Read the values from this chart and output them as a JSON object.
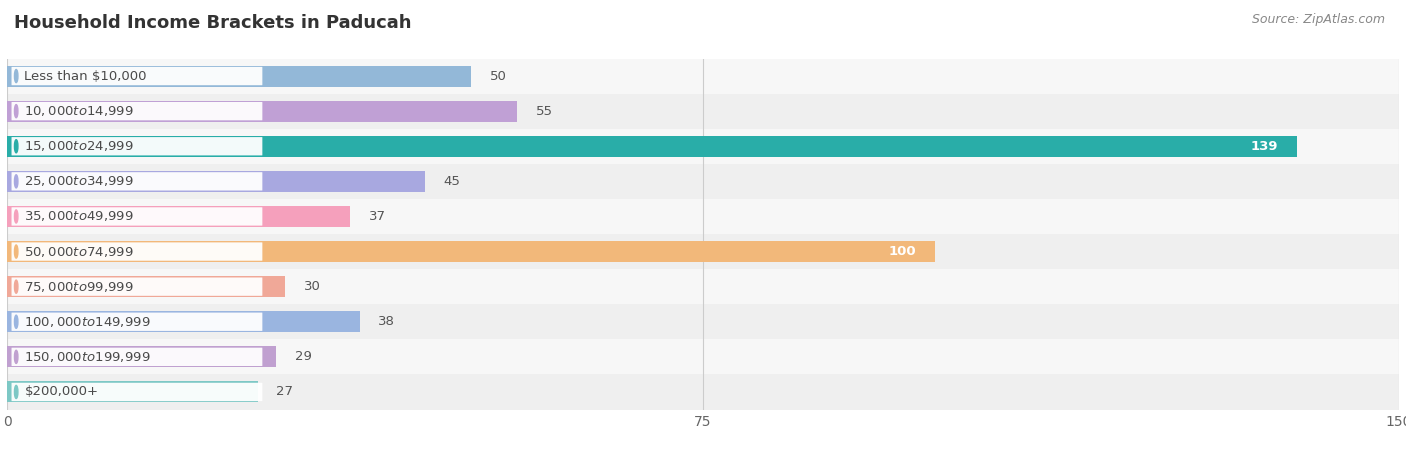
{
  "title": "Household Income Brackets in Paducah",
  "source": "Source: ZipAtlas.com",
  "categories": [
    "Less than $10,000",
    "$10,000 to $14,999",
    "$15,000 to $24,999",
    "$25,000 to $34,999",
    "$35,000 to $49,999",
    "$50,000 to $74,999",
    "$75,000 to $99,999",
    "$100,000 to $149,999",
    "$150,000 to $199,999",
    "$200,000+"
  ],
  "values": [
    50,
    55,
    139,
    45,
    37,
    100,
    30,
    38,
    29,
    27
  ],
  "bar_colors": [
    "#93b8d8",
    "#c0a0d5",
    "#29ada8",
    "#a8a8e0",
    "#f5a0bc",
    "#f2b87a",
    "#f0a898",
    "#9ab5e0",
    "#c0a0d0",
    "#7dc8c5"
  ],
  "row_colors": [
    "#f7f7f7",
    "#efefef"
  ],
  "xlim": [
    0,
    150
  ],
  "xticks": [
    0,
    75,
    150
  ],
  "figsize": [
    14.06,
    4.5
  ],
  "dpi": 100,
  "label_fontsize": 9.5,
  "value_fontsize": 9.5,
  "title_fontsize": 13,
  "source_fontsize": 9,
  "bar_height": 0.6
}
